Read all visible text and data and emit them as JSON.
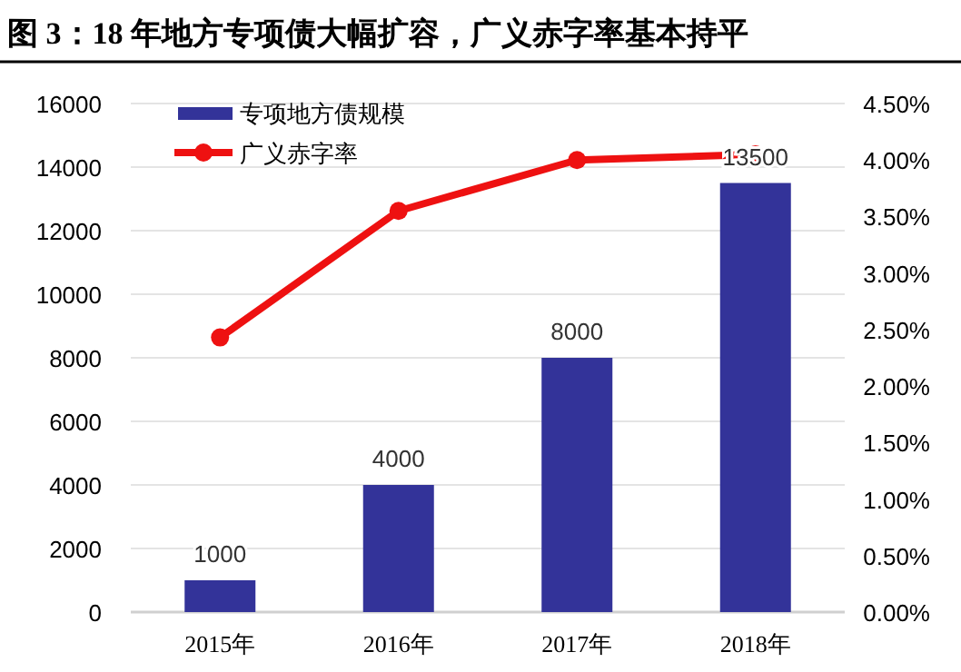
{
  "chart_data": {
    "type": "bar",
    "title": "图 3：18 年地方专项债大幅扩容，广义赤字率基本持平",
    "categories": [
      "2015年",
      "2016年",
      "2017年",
      "2018年"
    ],
    "series": [
      {
        "name": "专项地方债规模",
        "color": "#333399",
        "values": [
          1000,
          4000,
          8000,
          13500
        ],
        "value_labels": [
          "1000",
          "4000",
          "8000",
          "13500"
        ]
      },
      {
        "name": "广义赤字率",
        "type": "line",
        "axis": "y2",
        "color": "#ee1111",
        "marker": "circle",
        "values": [
          2.43,
          3.55,
          4.0,
          4.05
        ]
      }
    ],
    "ylim": [
      0,
      16000
    ],
    "yticks": [
      0,
      2000,
      4000,
      6000,
      8000,
      10000,
      12000,
      14000,
      16000
    ],
    "y2lim": [
      0,
      4.5
    ],
    "y2ticks": [
      {
        "value": 0,
        "label": "0.00%"
      },
      {
        "value": 0.5,
        "label": "0.50%"
      },
      {
        "value": 1,
        "label": "1.00%"
      },
      {
        "value": 1.5,
        "label": "1.50%"
      },
      {
        "value": 2,
        "label": "2.00%"
      },
      {
        "value": 2.5,
        "label": "2.50%"
      },
      {
        "value": 3,
        "label": "3.00%"
      },
      {
        "value": 3.5,
        "label": "3.50%"
      },
      {
        "value": 4,
        "label": "4.00%"
      },
      {
        "value": 4.5,
        "label": "4.50%"
      }
    ],
    "grid": "y",
    "legend": "top left"
  }
}
